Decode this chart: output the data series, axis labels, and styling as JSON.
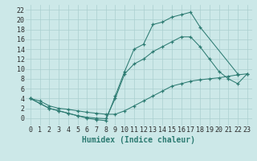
{
  "line1_x": [
    0,
    1,
    2,
    3,
    4,
    5,
    6,
    7,
    8,
    9,
    10,
    11,
    12,
    13,
    14,
    15,
    16,
    17,
    18,
    22
  ],
  "line1_y": [
    4,
    3,
    2,
    1.5,
    1.0,
    0.5,
    0.0,
    -0.3,
    -0.5,
    4.5,
    9.5,
    14,
    15,
    19,
    19.5,
    20.5,
    21.0,
    21.5,
    18.5,
    9.0
  ],
  "line2_x": [
    0,
    1,
    2,
    3,
    4,
    5,
    6,
    7,
    8,
    9,
    10,
    11,
    12,
    13,
    14,
    15,
    16,
    17,
    18,
    19,
    20,
    21,
    22,
    23
  ],
  "line2_y": [
    4,
    3,
    2,
    1.5,
    1.0,
    0.5,
    0.2,
    -0.0,
    -0.1,
    4.0,
    9.0,
    11.0,
    12.0,
    13.5,
    14.5,
    15.5,
    16.5,
    16.5,
    14.5,
    12.0,
    9.5,
    8.0,
    7.0,
    9.0
  ],
  "line3_x": [
    0,
    1,
    2,
    3,
    4,
    5,
    6,
    7,
    8,
    9,
    10,
    11,
    12,
    13,
    14,
    15,
    16,
    17,
    18,
    19,
    20,
    21,
    22,
    23
  ],
  "line3_y": [
    4,
    3.5,
    2.5,
    2.0,
    1.8,
    1.5,
    1.2,
    1.0,
    0.8,
    0.8,
    1.5,
    2.5,
    3.5,
    4.5,
    5.5,
    6.5,
    7.0,
    7.5,
    7.8,
    8.0,
    8.2,
    8.5,
    8.8,
    9.0
  ],
  "color": "#2d7b72",
  "bg_color": "#cce8e8",
  "grid_color": "#aacfcf",
  "xlabel": "Humidex (Indice chaleur)",
  "xlim": [
    -0.5,
    23.5
  ],
  "ylim": [
    -1.5,
    23
  ],
  "xticks": [
    0,
    1,
    2,
    3,
    4,
    5,
    6,
    7,
    8,
    9,
    10,
    11,
    12,
    13,
    14,
    15,
    16,
    17,
    18,
    19,
    20,
    21,
    22,
    23
  ],
  "yticks": [
    0,
    2,
    4,
    6,
    8,
    10,
    12,
    14,
    16,
    18,
    20,
    22
  ],
  "tick_fontsize": 6.0,
  "xlabel_fontsize": 7.0
}
